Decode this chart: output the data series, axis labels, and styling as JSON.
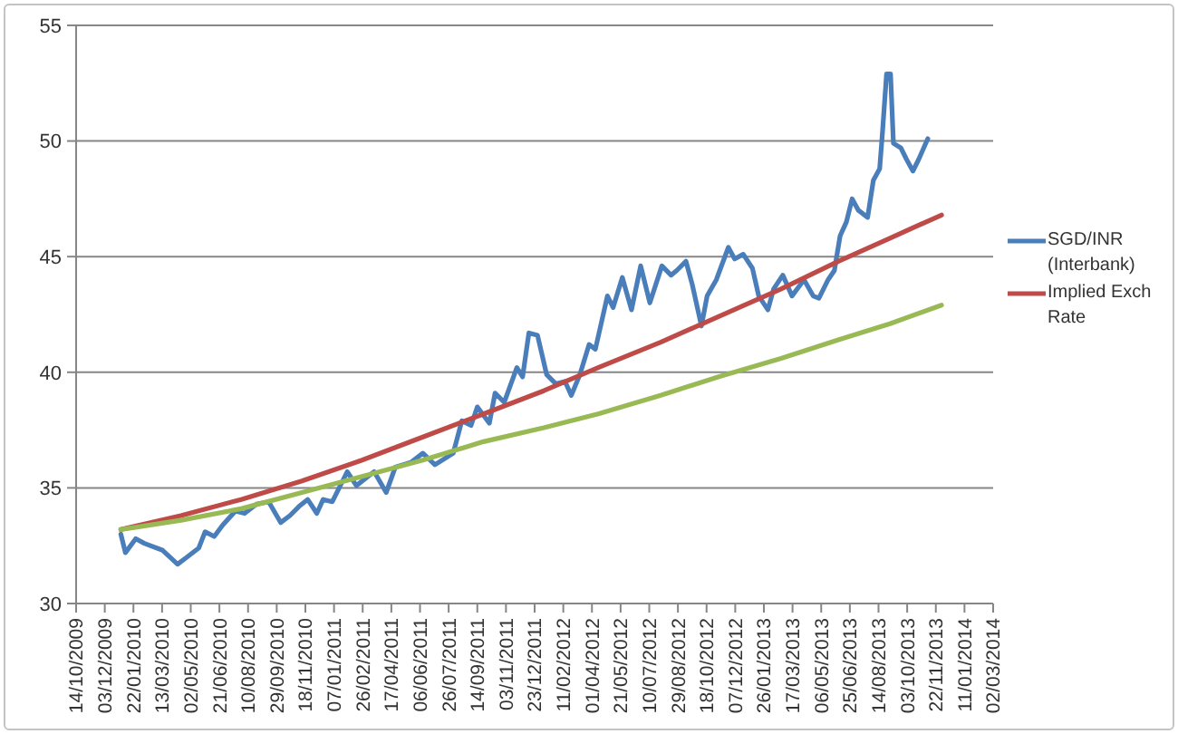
{
  "chart_data": {
    "type": "line",
    "series": [
      {
        "name": "SGD/INR (Interbank)",
        "color": "#4a7ebb",
        "x": [
          "2009-12-31",
          "2010-01-08",
          "2010-01-26",
          "2010-02-10",
          "2010-03-14",
          "2010-04-09",
          "2010-04-25",
          "2010-05-16",
          "2010-05-27",
          "2010-06-12",
          "2010-06-27",
          "2010-07-19",
          "2010-08-04",
          "2010-08-25",
          "2010-09-15",
          "2010-10-06",
          "2010-10-22",
          "2010-11-07",
          "2010-11-22",
          "2010-12-08",
          "2010-12-19",
          "2011-01-04",
          "2011-01-30",
          "2011-02-15",
          "2011-03-18",
          "2011-04-08",
          "2011-04-24",
          "2011-05-21",
          "2011-06-11",
          "2011-07-02",
          "2011-08-03",
          "2011-08-18",
          "2011-09-03",
          "2011-09-14",
          "2011-10-05",
          "2011-10-15",
          "2011-10-31",
          "2011-11-22",
          "2011-12-02",
          "2011-12-13",
          "2011-12-28",
          "2012-01-13",
          "2012-01-29",
          "2012-02-14",
          "2012-02-25",
          "2012-03-11",
          "2012-03-27",
          "2012-04-07",
          "2012-04-28",
          "2012-05-08",
          "2012-05-24",
          "2012-06-09",
          "2012-06-25",
          "2012-07-11",
          "2012-08-01",
          "2012-08-17",
          "2012-08-27",
          "2012-09-12",
          "2012-09-23",
          "2012-10-09",
          "2012-10-19",
          "2012-11-04",
          "2012-11-25",
          "2012-12-06",
          "2012-12-21",
          "2013-01-06",
          "2013-01-17",
          "2013-02-02",
          "2013-02-12",
          "2013-02-28",
          "2013-03-16",
          "2013-04-06",
          "2013-04-22",
          "2013-05-02",
          "2013-05-18",
          "2013-05-29",
          "2013-06-08",
          "2013-06-19",
          "2013-06-29",
          "2013-07-10",
          "2013-07-26",
          "2013-08-05",
          "2013-08-16",
          "2013-08-21",
          "2013-08-28",
          "2013-09-04",
          "2013-09-09",
          "2013-09-22",
          "2013-10-02",
          "2013-10-13",
          "2013-10-23",
          "2013-11-08"
        ],
        "values": [
          33.0,
          32.2,
          32.8,
          32.6,
          32.3,
          31.7,
          32.0,
          32.4,
          33.1,
          32.9,
          33.4,
          34.0,
          33.9,
          34.3,
          34.4,
          33.5,
          33.8,
          34.2,
          34.5,
          33.9,
          34.5,
          34.4,
          35.7,
          35.1,
          35.7,
          34.8,
          35.9,
          36.1,
          36.5,
          36.0,
          36.5,
          37.9,
          37.7,
          38.5,
          37.8,
          39.1,
          38.7,
          40.2,
          39.8,
          41.7,
          41.6,
          39.9,
          39.5,
          39.6,
          39.0,
          39.9,
          41.2,
          41.0,
          43.3,
          42.8,
          44.1,
          42.7,
          44.6,
          43.0,
          44.6,
          44.2,
          44.4,
          44.8,
          43.8,
          42.0,
          43.3,
          44.0,
          45.4,
          44.9,
          45.1,
          44.5,
          43.3,
          42.7,
          43.6,
          44.2,
          43.3,
          44.0,
          43.3,
          43.2,
          44.0,
          44.4,
          45.9,
          46.5,
          47.5,
          47.0,
          46.7,
          48.3,
          48.8,
          50.4,
          52.9,
          52.9,
          49.9,
          49.7,
          49.2,
          48.7,
          49.2,
          50.1
        ]
      },
      {
        "name": "Implied Exch Rate",
        "color": "#be4b48",
        "x": [
          "2009-12-31",
          "2010-04-15",
          "2010-07-29",
          "2010-11-12",
          "2011-02-25",
          "2011-06-11",
          "2011-09-25",
          "2012-01-08",
          "2012-04-12",
          "2012-07-30",
          "2012-11-07",
          "2013-02-25",
          "2013-06-05",
          "2013-09-03",
          "2013-12-02"
        ],
        "values": [
          33.2,
          33.8,
          34.5,
          35.3,
          36.2,
          37.2,
          38.2,
          39.2,
          40.2,
          41.3,
          42.4,
          43.6,
          44.8,
          45.8,
          46.8
        ]
      },
      {
        "color": "#98b954",
        "x": [
          "2009-12-31",
          "2010-04-15",
          "2010-07-29",
          "2010-11-12",
          "2011-02-25",
          "2011-06-11",
          "2011-09-25",
          "2012-01-08",
          "2012-04-12",
          "2012-07-30",
          "2012-11-07",
          "2013-02-25",
          "2013-06-05",
          "2013-09-03",
          "2013-12-02"
        ],
        "values": [
          33.2,
          33.6,
          34.1,
          34.8,
          35.5,
          36.2,
          37.0,
          37.6,
          38.2,
          39.0,
          39.8,
          40.6,
          41.4,
          42.1,
          42.9
        ]
      }
    ],
    "xlim": [
      "2009-10-14",
      "2014-03-02"
    ],
    "xticks": [
      {
        "value": "2009-10-14",
        "label": "14/10/2009"
      },
      {
        "value": "2009-12-03",
        "label": "03/12/2009"
      },
      {
        "value": "2010-01-22",
        "label": "22/01/2010"
      },
      {
        "value": "2010-03-13",
        "label": "13/03/2010"
      },
      {
        "value": "2010-05-02",
        "label": "02/05/2010"
      },
      {
        "value": "2010-06-21",
        "label": "21/06/2010"
      },
      {
        "value": "2010-08-10",
        "label": "10/08/2010"
      },
      {
        "value": "2010-09-29",
        "label": "29/09/2010"
      },
      {
        "value": "2010-11-18",
        "label": "18/11/2010"
      },
      {
        "value": "2011-01-07",
        "label": "07/01/2011"
      },
      {
        "value": "2011-02-26",
        "label": "26/02/2011"
      },
      {
        "value": "2011-04-17",
        "label": "17/04/2011"
      },
      {
        "value": "2011-06-06",
        "label": "06/06/2011"
      },
      {
        "value": "2011-07-26",
        "label": "26/07/2011"
      },
      {
        "value": "2011-09-14",
        "label": "14/09/2011"
      },
      {
        "value": "2011-11-03",
        "label": "03/11/2011"
      },
      {
        "value": "2011-12-23",
        "label": "23/12/2011"
      },
      {
        "value": "2012-02-11",
        "label": "11/02/2012"
      },
      {
        "value": "2012-04-01",
        "label": "01/04/2012"
      },
      {
        "value": "2012-05-21",
        "label": "21/05/2012"
      },
      {
        "value": "2012-07-10",
        "label": "10/07/2012"
      },
      {
        "value": "2012-08-29",
        "label": "29/08/2012"
      },
      {
        "value": "2012-10-18",
        "label": "18/10/2012"
      },
      {
        "value": "2012-12-07",
        "label": "07/12/2012"
      },
      {
        "value": "2013-01-26",
        "label": "26/01/2013"
      },
      {
        "value": "2013-03-17",
        "label": "17/03/2013"
      },
      {
        "value": "2013-05-06",
        "label": "06/05/2013"
      },
      {
        "value": "2013-06-25",
        "label": "25/06/2013"
      },
      {
        "value": "2013-08-14",
        "label": "14/08/2013"
      },
      {
        "value": "2013-10-03",
        "label": "03/10/2013"
      },
      {
        "value": "2013-11-22",
        "label": "22/11/2013"
      },
      {
        "value": "2014-01-11",
        "label": "11/01/2014"
      },
      {
        "value": "2014-03-02",
        "label": "02/03/2014"
      }
    ],
    "ylim": [
      30,
      55
    ],
    "yticks": [
      30,
      35,
      40,
      45,
      50,
      55
    ],
    "grid": "y",
    "legend": "right",
    "line_style": "solid"
  }
}
